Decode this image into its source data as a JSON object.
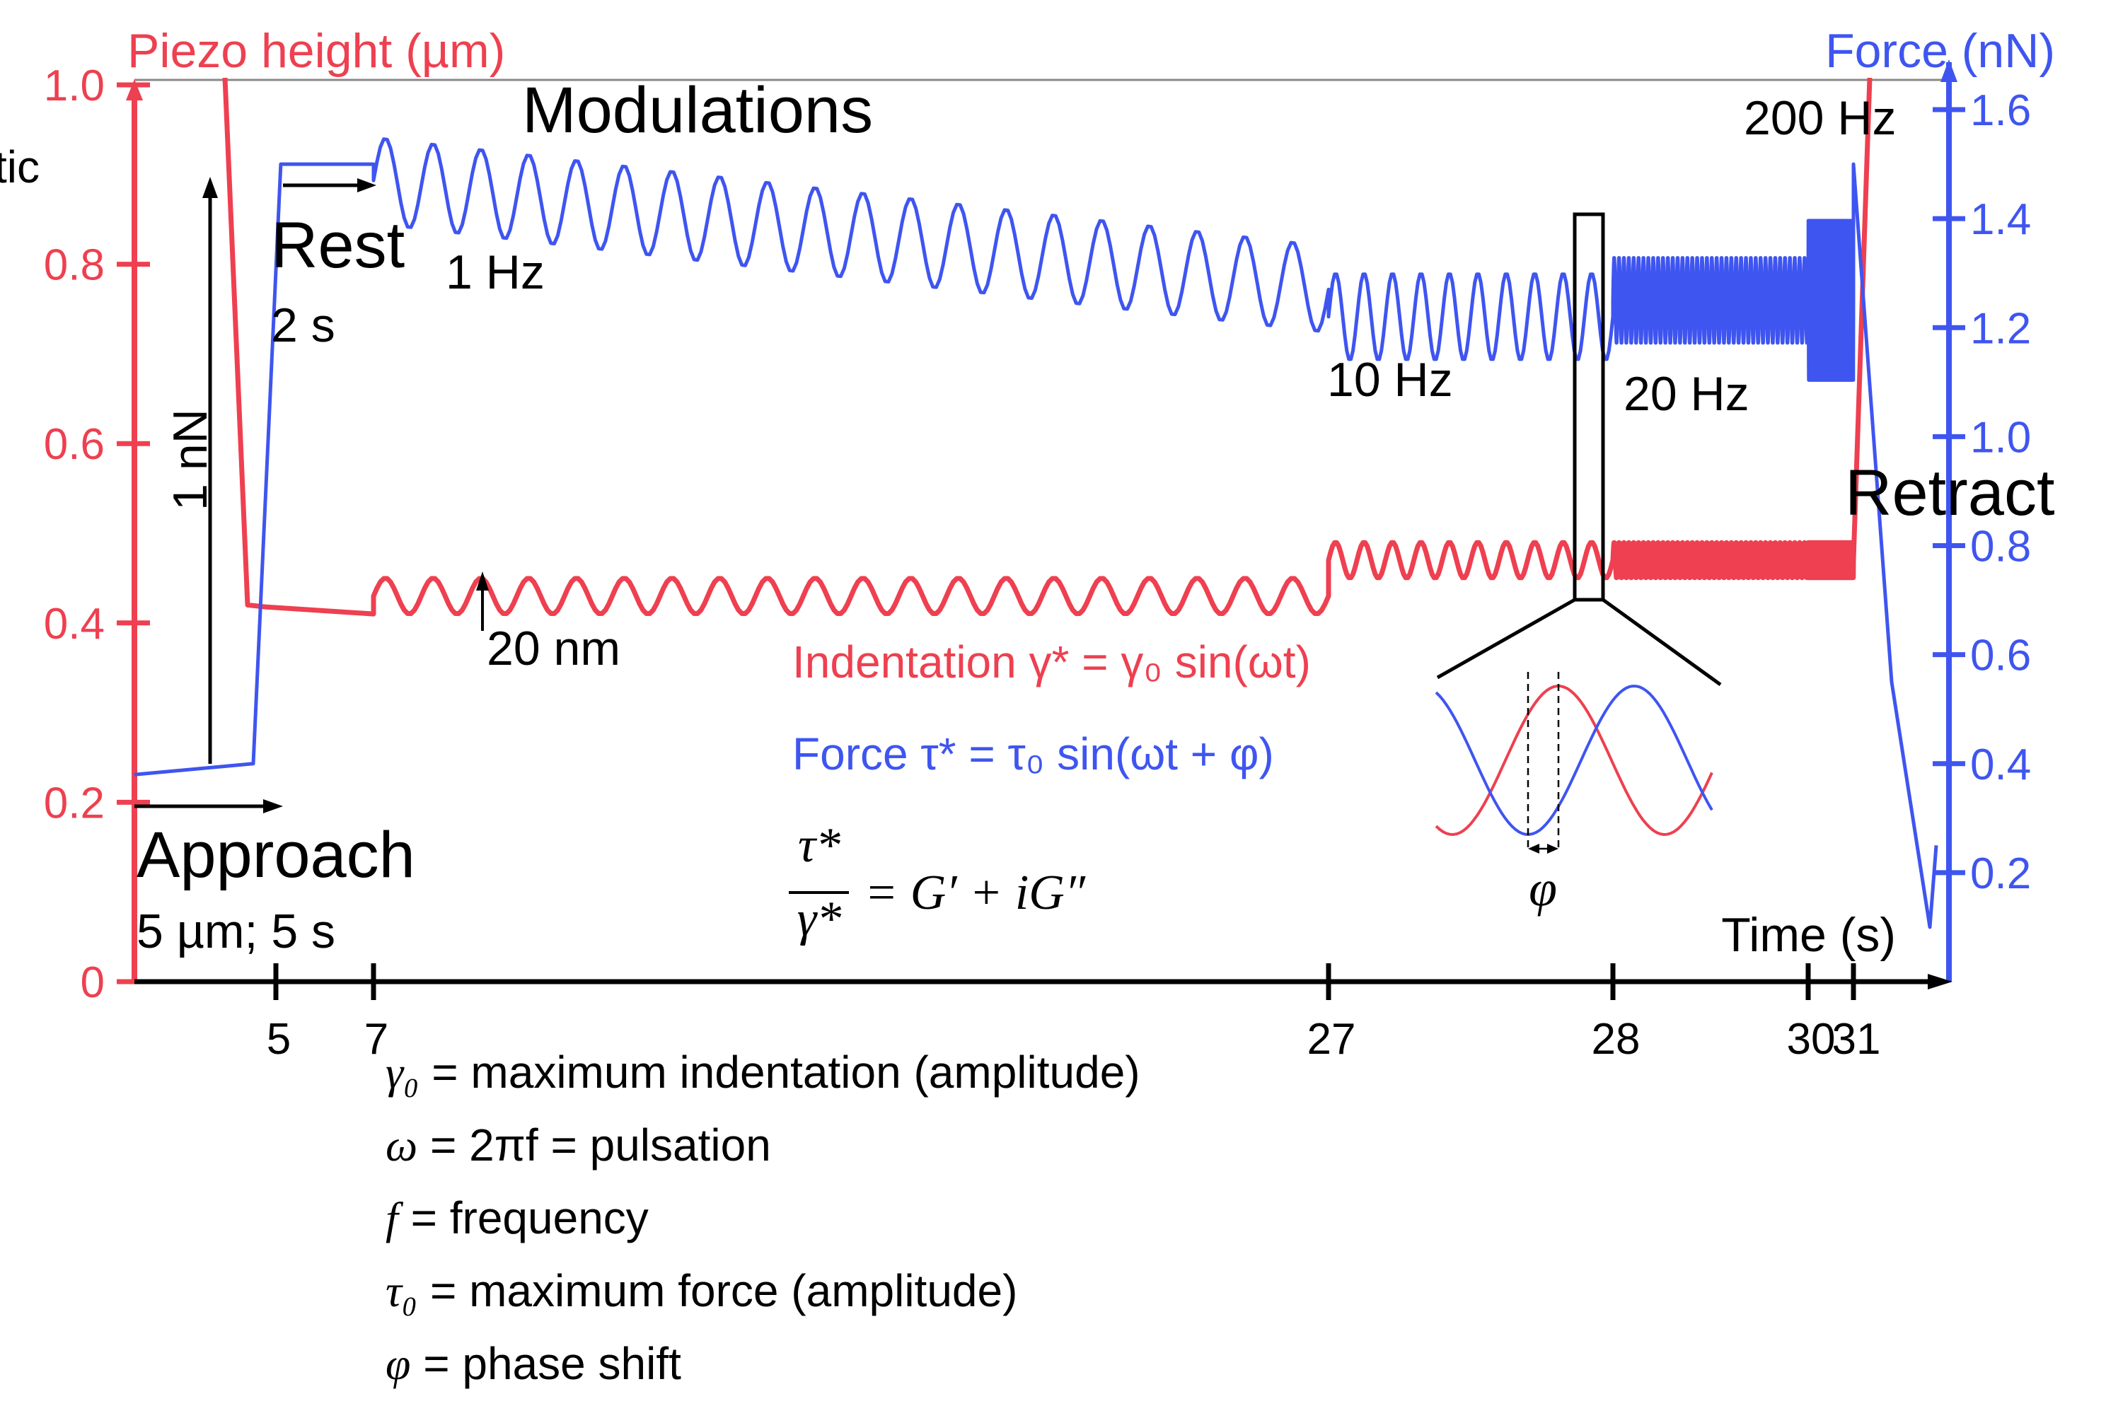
{
  "chart_data": {
    "type": "line",
    "title": "",
    "xlabel": "Time (s)",
    "y_left_label": "Piezo height (µm)",
    "y_right_label": "Force (nN)",
    "x_ticks": [
      5,
      7,
      27,
      28,
      30,
      31
    ],
    "x_tick_labels": [
      "5",
      "7",
      "27",
      "28",
      "30",
      "31"
    ],
    "y_left_ticks": [
      0,
      0.2,
      0.4,
      0.6,
      0.8,
      1.0
    ],
    "y_left_tick_labels": [
      "0",
      "0.2",
      "0.4",
      "0.6",
      "0.8",
      "1.0"
    ],
    "y_left_range": [
      0,
      1.0
    ],
    "y_right_ticks": [
      0.2,
      0.4,
      0.6,
      0.8,
      1.0,
      1.2,
      1.4,
      1.6
    ],
    "y_right_tick_labels": [
      "0.2",
      "0.4",
      "0.6",
      "0.8",
      "1.0",
      "1.2",
      "1.4",
      "1.6"
    ],
    "y_right_range": [
      0,
      1.65
    ],
    "colors": {
      "piezo": "#ee4050",
      "force": "#3f55f0",
      "text": "#000000"
    },
    "series": [
      {
        "key": "piezo",
        "axis": "left",
        "segments": [
          {
            "phase": "approach",
            "t": [
              4.1,
              4.5
            ],
            "y": [
              1.0,
              0.42
            ]
          },
          {
            "phase": "rest",
            "t": [
              5,
              7
            ],
            "y": 0.41
          },
          {
            "phase": "modulation",
            "t": [
              7,
              27
            ],
            "frequency_hz": 1,
            "mean": 0.43,
            "amplitude_um": 0.02
          },
          {
            "phase": "modulation",
            "t": [
              27,
              28
            ],
            "frequency_hz": 10,
            "mean": 0.47,
            "amplitude_um": 0.02
          },
          {
            "phase": "modulation",
            "t": [
              28,
              30
            ],
            "frequency_hz": 20,
            "mean": 0.47,
            "amplitude_um": 0.02
          },
          {
            "phase": "modulation",
            "t": [
              30,
              31
            ],
            "frequency_hz": 200,
            "mean": 0.47,
            "amplitude_um": 0.02
          },
          {
            "phase": "retract",
            "t": [
              31,
              31.2
            ],
            "y": [
              0.47,
              1.0
            ]
          }
        ]
      },
      {
        "key": "force",
        "axis": "right",
        "segments": [
          {
            "phase": "approach",
            "t": [
              2.5,
              4.6
            ],
            "y": [
              0.38,
              0.4
            ]
          },
          {
            "phase": "contact",
            "t": [
              4.6,
              5.1
            ],
            "y": [
              0.4,
              1.5
            ]
          },
          {
            "phase": "rest",
            "t": [
              5.1,
              7
            ],
            "y": 1.5
          },
          {
            "phase": "modulation",
            "t": [
              7,
              27
            ],
            "frequency_hz": 1,
            "mean": [
              1.47,
              1.27
            ],
            "amplitude_nn": 0.08
          },
          {
            "phase": "modulation",
            "t": [
              27,
              28
            ],
            "frequency_hz": 10,
            "mean": 1.22,
            "amplitude_nn": 0.08
          },
          {
            "phase": "modulation",
            "t": [
              28,
              30
            ],
            "frequency_hz": 20,
            "mean": 1.25,
            "amplitude_nn": 0.08
          },
          {
            "phase": "modulation",
            "t": [
              30,
              31
            ],
            "frequency_hz": 200,
            "mean": 1.25,
            "amplitude_nn": 0.15
          },
          {
            "phase": "retract",
            "t": [
              31,
              32.3
            ],
            "y": [
              1.5,
              0.1
            ]
          }
        ]
      }
    ],
    "annotations": {
      "modulations": "Modulations",
      "freq_200": "200 Hz",
      "fragment": "tic",
      "rest": "Rest",
      "rest_time": "2 s",
      "freq_1": "1 Hz",
      "freq_10": "10 Hz",
      "freq_20": "20 Hz",
      "one_nn": "1 nN",
      "retract": "Retract",
      "approach": "Approach",
      "approach_detail": "5 µm; 5 s",
      "twenty_nm": "20 nm",
      "phi": "φ"
    },
    "equations": {
      "indentation": "Indentation γ* = γ₀ sin(ωt)",
      "force": "Force τ* = τ₀ sin(ωt + φ)",
      "ratio_num": "τ*",
      "ratio_den": "γ*",
      "ratio_rhs": "= G′ + iG″"
    }
  },
  "definitions": [
    {
      "symbol": "γ₀",
      "text": " = maximum indentation (amplitude)"
    },
    {
      "symbol": "ω",
      "text": " = 2πf = pulsation"
    },
    {
      "symbol": "f",
      "text": " = frequency"
    },
    {
      "symbol": "τ₀",
      "text": " = maximum force (amplitude)"
    },
    {
      "symbol": "φ",
      "text": " = phase shift"
    }
  ]
}
